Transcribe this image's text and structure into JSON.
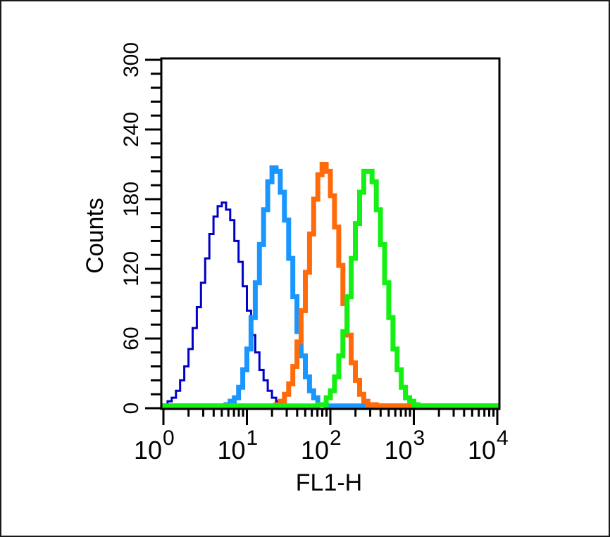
{
  "chart_data": {
    "type": "line",
    "subtype": "flow-cytometry-histogram-overlay",
    "title": "",
    "xlabel": "FL1-H",
    "ylabel": "Counts",
    "xscale": "log",
    "xlim": [
      1,
      10000
    ],
    "ylim": [
      0,
      300
    ],
    "x_ticks": [
      {
        "base": "10",
        "exp": "0",
        "value": 1
      },
      {
        "base": "10",
        "exp": "1",
        "value": 10
      },
      {
        "base": "10",
        "exp": "2",
        "value": 100
      },
      {
        "base": "10",
        "exp": "3",
        "value": 1000
      },
      {
        "base": "10",
        "exp": "4",
        "value": 10000
      }
    ],
    "y_ticks": [
      "0",
      "60",
      "120",
      "180",
      "240",
      "300"
    ],
    "y_tick_values": [
      0,
      60,
      120,
      180,
      240,
      300
    ],
    "grid": false,
    "legend": null,
    "series": [
      {
        "name": "dark-blue (control)",
        "color": "#0000c8",
        "stroke_width": 3,
        "peak_x": 5.2,
        "peak_log10": 0.72,
        "peak_count": 176,
        "sigma_log10": 0.25
      },
      {
        "name": "light-blue",
        "color": "#1a96ff",
        "stroke_width": 7,
        "peak_x": 22,
        "peak_log10": 1.34,
        "peak_count": 207,
        "sigma_log10": 0.19
      },
      {
        "name": "orange",
        "color": "#ff6a0a",
        "stroke_width": 7,
        "peak_x": 85,
        "peak_log10": 1.93,
        "peak_count": 209,
        "sigma_log10": 0.19
      },
      {
        "name": "green",
        "color": "#14f014",
        "stroke_width": 7,
        "peak_x": 290,
        "peak_log10": 2.46,
        "peak_count": 206,
        "sigma_log10": 0.19
      }
    ]
  }
}
